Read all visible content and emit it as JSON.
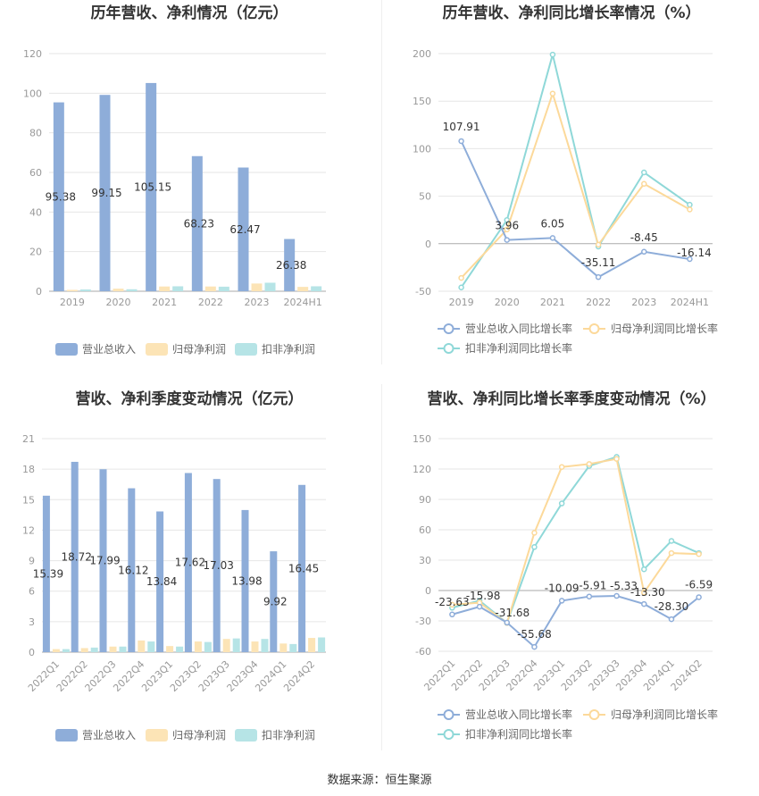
{
  "colors": {
    "revenue": "#8eadd9",
    "net_profit": "#fce4b6",
    "deducted_profit": "#b6e4e6",
    "revenue_line": "#8eadd9",
    "net_line": "#fcd99a",
    "deducted_line": "#8fd8d8"
  },
  "source_text": "数据来源：恒生聚源",
  "chart_data": [
    {
      "id": "annual-bar",
      "type": "bar",
      "title": "历年营收、净利情况（亿元）",
      "categories": [
        "2019",
        "2020",
        "2021",
        "2022",
        "2023",
        "2024H1"
      ],
      "yticks": [
        "0",
        "20",
        "40",
        "60",
        "80",
        "100",
        "120"
      ],
      "ylim": [
        0,
        120
      ],
      "series": [
        {
          "name": "营业总收入",
          "values": [
            95.38,
            99.15,
            105.15,
            68.23,
            62.47,
            26.38
          ],
          "labels": [
            "95.38",
            "99.15",
            "105.15",
            "68.23",
            "62.47",
            "26.38"
          ],
          "color_key": "revenue"
        },
        {
          "name": "归母净利润",
          "values": [
            0.7,
            1.3,
            2.4,
            2.4,
            3.9,
            2.2
          ],
          "color_key": "net_profit"
        },
        {
          "name": "扣非净利润",
          "values": [
            0.9,
            1.0,
            2.5,
            2.3,
            4.3,
            2.5
          ],
          "color_key": "deducted_profit"
        }
      ],
      "legend": "bottom"
    },
    {
      "id": "annual-line",
      "type": "line",
      "title": "历年营收、净利同比增长率情况（%）",
      "categories": [
        "2019",
        "2020",
        "2021",
        "2022",
        "2023",
        "2024H1"
      ],
      "yticks": [
        "-50",
        "0",
        "50",
        "100",
        "150",
        "200"
      ],
      "ylim": [
        -50,
        200
      ],
      "series": [
        {
          "name": "营业总收入同比增长率",
          "values": [
            107.91,
            3.96,
            6.05,
            -35.11,
            -8.45,
            -16.14
          ],
          "labels": [
            "107.91",
            "3.96",
            "6.05",
            "-35.11",
            "-8.45",
            "-16.14"
          ],
          "color_key": "revenue_line"
        },
        {
          "name": "归母净利润同比增长率",
          "values": [
            -36,
            15,
            158,
            -1,
            63,
            36
          ],
          "color_key": "net_line"
        },
        {
          "name": "扣非净利润同比增长率",
          "values": [
            -46,
            25,
            199,
            -3,
            75,
            41
          ],
          "color_key": "deducted_line"
        }
      ],
      "legend": "bottom"
    },
    {
      "id": "quarter-bar",
      "type": "bar",
      "title": "营收、净利季度变动情况（亿元）",
      "categories": [
        "2022Q1",
        "2022Q2",
        "2022Q3",
        "2022Q4",
        "2023Q1",
        "2023Q2",
        "2023Q3",
        "2023Q4",
        "2024Q1",
        "2024Q2"
      ],
      "yticks": [
        "0",
        "3",
        "6",
        "9",
        "12",
        "15",
        "18",
        "21"
      ],
      "ylim": [
        0,
        21
      ],
      "series": [
        {
          "name": "营业总收入",
          "values": [
            15.39,
            18.72,
            17.99,
            16.12,
            13.84,
            17.62,
            17.03,
            13.98,
            9.92,
            16.45
          ],
          "labels": [
            "15.39",
            "18.72",
            "17.99",
            "16.12",
            "13.84",
            "17.62",
            "17.03",
            "13.98",
            "9.92",
            "16.45"
          ],
          "color_key": "revenue"
        },
        {
          "name": "归母净利润",
          "values": [
            0.3,
            0.4,
            0.55,
            1.15,
            0.6,
            1.05,
            1.3,
            1.05,
            0.85,
            1.4
          ],
          "color_key": "net_profit"
        },
        {
          "name": "扣非净利润",
          "values": [
            0.3,
            0.45,
            0.55,
            1.05,
            0.55,
            1.0,
            1.35,
            1.3,
            0.8,
            1.45
          ],
          "color_key": "deducted_profit"
        }
      ],
      "legend": "bottom"
    },
    {
      "id": "quarter-line",
      "type": "line",
      "title": "营收、净利同比增长率季度变动情况（%）",
      "categories": [
        "2022Q1",
        "2022Q2",
        "2022Q3",
        "2022Q4",
        "2023Q1",
        "2023Q2",
        "2023Q3",
        "2023Q4",
        "2024Q1",
        "2024Q2"
      ],
      "yticks": [
        "-60",
        "-30",
        "0",
        "30",
        "60",
        "90",
        "120",
        "150"
      ],
      "ylim": [
        -60,
        150
      ],
      "series": [
        {
          "name": "营业总收入同比增长率",
          "values": [
            -23.63,
            -15.98,
            -31.68,
            -55.68,
            -10.09,
            -5.91,
            -5.33,
            -13.3,
            -28.3,
            -6.59
          ],
          "labels": [
            "-23.63",
            "-15.98",
            "-31.68",
            "-55.68",
            "-10.09",
            "-5.91",
            "-5.33",
            "-13.30",
            "-28.30",
            "-6.59"
          ],
          "color_key": "revenue_line"
        },
        {
          "name": "归母净利润同比增长率",
          "values": [
            -14,
            -12,
            -32,
            57,
            122,
            125,
            130,
            -2,
            37,
            36
          ],
          "color_key": "net_line"
        },
        {
          "name": "扣非净利润同比增长率",
          "values": [
            -17,
            -10,
            -32,
            43,
            86,
            123,
            132,
            21,
            49,
            37
          ],
          "color_key": "deducted_line"
        }
      ],
      "legend": "bottom"
    }
  ]
}
